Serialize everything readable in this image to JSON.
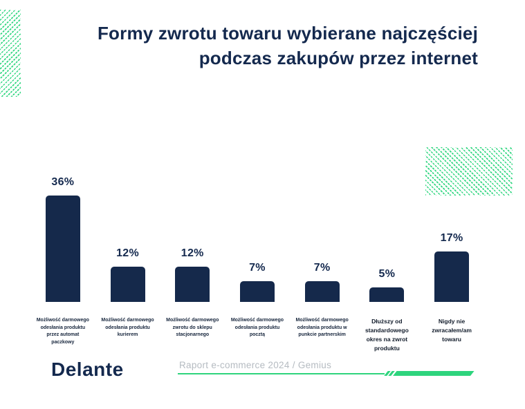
{
  "title": {
    "line1": "Formy zwrotu towaru wybierane najczęściej",
    "line2": "podczas zakupów przez internet"
  },
  "chart_data": {
    "type": "bar",
    "title": "Formy zwrotu towaru wybierane najczęściej podczas zakupów przez internet",
    "categories": [
      "Możliwość darmowego odesłania produktu przez automat paczkowy",
      "Możliwość darmowego odesłania produktu kurierem",
      "Możliwość darmowego zwrotu do sklepu stacjonarnego",
      "Możliwość darmowego odesłania produktu pocztą",
      "Możliwość darmowego odesłania produktu w punkcie partnerskim",
      "Dłuższy od standardowego okres na zwrot produktu",
      "Nigdy nie zwracałem/am towaru"
    ],
    "values": [
      36,
      12,
      12,
      7,
      7,
      5,
      17
    ],
    "value_labels": [
      "36%",
      "12%",
      "12%",
      "7%",
      "7%",
      "5%",
      "17%"
    ],
    "xlabel": "",
    "ylabel": "",
    "ylim": [
      0,
      40
    ],
    "grid": false,
    "legend": false,
    "colors": {
      "bar": "#15294b",
      "accent_green": "#2ed47d",
      "title_navy": "#14294e",
      "caption_gray": "#b5bbc1"
    }
  },
  "footer": {
    "brand": "Delante",
    "caption": "Raport e-commerce 2024 / Gemius"
  }
}
